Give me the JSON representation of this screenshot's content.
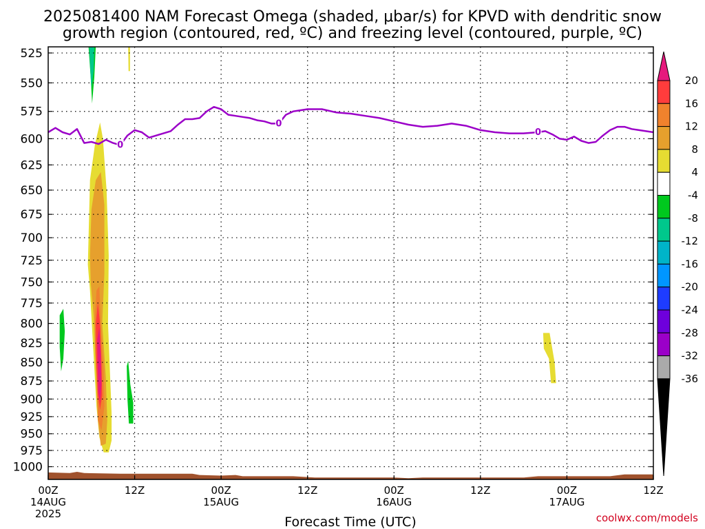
{
  "title": {
    "line1": "2025081400 NAM Forecast Omega (shaded, μbar/s) for KPVD with dendritic snow",
    "line2": "growth region (contoured, red, ºC) and freezing level (contoured, purple, ºC)"
  },
  "credit": "coolwx.com/models",
  "chart_data": {
    "type": "time-height cross section",
    "xlabel": "Forecast Time (UTC)",
    "ylabel": "",
    "x_range_hours": [
      0,
      84
    ],
    "y_range_hpa": [
      1020,
      520
    ],
    "y_scale": "log-pressure",
    "grid": true,
    "y_ticks": [
      525,
      550,
      575,
      600,
      625,
      650,
      675,
      700,
      725,
      750,
      775,
      800,
      825,
      850,
      875,
      900,
      925,
      950,
      975,
      1000
    ],
    "x_ticks": [
      {
        "hour": 0,
        "label": "00Z",
        "date": "14AUG",
        "year": "2025"
      },
      {
        "hour": 12,
        "label": "12Z",
        "date": "",
        "year": ""
      },
      {
        "hour": 24,
        "label": "00Z",
        "date": "15AUG",
        "year": ""
      },
      {
        "hour": 36,
        "label": "12Z",
        "date": "",
        "year": ""
      },
      {
        "hour": 48,
        "label": "00Z",
        "date": "16AUG",
        "year": ""
      },
      {
        "hour": 60,
        "label": "12Z",
        "date": "",
        "year": ""
      },
      {
        "hour": 72,
        "label": "00Z",
        "date": "17AUG",
        "year": ""
      },
      {
        "hour": 84,
        "label": "12Z",
        "date": "",
        "year": ""
      }
    ],
    "freezing_level": {
      "contour_label": "0",
      "color": "#9b00c8",
      "label_points": [
        {
          "hour": 10,
          "hpa": 606
        },
        {
          "hour": 32,
          "hpa": 586
        },
        {
          "hour": 68,
          "hpa": 594
        }
      ],
      "points": [
        {
          "hour": 0,
          "hpa": 594
        },
        {
          "hour": 1,
          "hpa": 590
        },
        {
          "hour": 2,
          "hpa": 594
        },
        {
          "hour": 3,
          "hpa": 596
        },
        {
          "hour": 4,
          "hpa": 591
        },
        {
          "hour": 5,
          "hpa": 604
        },
        {
          "hour": 6,
          "hpa": 603
        },
        {
          "hour": 7,
          "hpa": 605
        },
        {
          "hour": 8,
          "hpa": 601
        },
        {
          "hour": 9,
          "hpa": 604
        },
        {
          "hour": 10,
          "hpa": 606
        },
        {
          "hour": 11,
          "hpa": 597
        },
        {
          "hour": 12,
          "hpa": 592
        },
        {
          "hour": 13,
          "hpa": 594
        },
        {
          "hour": 14,
          "hpa": 599
        },
        {
          "hour": 15,
          "hpa": 597
        },
        {
          "hour": 16,
          "hpa": 595
        },
        {
          "hour": 17,
          "hpa": 593
        },
        {
          "hour": 18,
          "hpa": 587
        },
        {
          "hour": 19,
          "hpa": 582
        },
        {
          "hour": 20,
          "hpa": 582
        },
        {
          "hour": 21,
          "hpa": 581
        },
        {
          "hour": 22,
          "hpa": 575
        },
        {
          "hour": 23,
          "hpa": 571
        },
        {
          "hour": 24,
          "hpa": 573
        },
        {
          "hour": 25,
          "hpa": 578
        },
        {
          "hour": 26,
          "hpa": 579
        },
        {
          "hour": 27,
          "hpa": 580
        },
        {
          "hour": 28,
          "hpa": 581
        },
        {
          "hour": 29,
          "hpa": 583
        },
        {
          "hour": 30,
          "hpa": 584
        },
        {
          "hour": 31,
          "hpa": 586
        },
        {
          "hour": 32,
          "hpa": 586
        },
        {
          "hour": 33,
          "hpa": 578
        },
        {
          "hour": 34,
          "hpa": 575
        },
        {
          "hour": 35,
          "hpa": 574
        },
        {
          "hour": 36,
          "hpa": 573
        },
        {
          "hour": 38,
          "hpa": 573
        },
        {
          "hour": 40,
          "hpa": 576
        },
        {
          "hour": 42,
          "hpa": 577
        },
        {
          "hour": 44,
          "hpa": 579
        },
        {
          "hour": 46,
          "hpa": 581
        },
        {
          "hour": 48,
          "hpa": 584
        },
        {
          "hour": 50,
          "hpa": 587
        },
        {
          "hour": 52,
          "hpa": 589
        },
        {
          "hour": 54,
          "hpa": 588
        },
        {
          "hour": 56,
          "hpa": 586
        },
        {
          "hour": 58,
          "hpa": 588
        },
        {
          "hour": 60,
          "hpa": 592
        },
        {
          "hour": 62,
          "hpa": 594
        },
        {
          "hour": 64,
          "hpa": 595
        },
        {
          "hour": 66,
          "hpa": 595
        },
        {
          "hour": 68,
          "hpa": 594
        },
        {
          "hour": 69,
          "hpa": 593
        },
        {
          "hour": 70,
          "hpa": 596
        },
        {
          "hour": 71,
          "hpa": 600
        },
        {
          "hour": 72,
          "hpa": 601
        },
        {
          "hour": 73,
          "hpa": 598
        },
        {
          "hour": 74,
          "hpa": 602
        },
        {
          "hour": 75,
          "hpa": 604
        },
        {
          "hour": 76,
          "hpa": 603
        },
        {
          "hour": 77,
          "hpa": 597
        },
        {
          "hour": 78,
          "hpa": 592
        },
        {
          "hour": 79,
          "hpa": 589
        },
        {
          "hour": 80,
          "hpa": 589
        },
        {
          "hour": 81,
          "hpa": 591
        },
        {
          "hour": 82,
          "hpa": 592
        },
        {
          "hour": 84,
          "hpa": 594
        }
      ]
    },
    "omega_features": [
      {
        "name": "upward motion 14AUG 06Z",
        "color": "#e6dc32",
        "fill_order": 1,
        "points": [
          [
            5.6,
            700
          ],
          [
            5.8,
            640
          ],
          [
            6.5,
            605
          ],
          [
            7.2,
            585
          ],
          [
            7.6,
            600
          ],
          [
            8.1,
            650
          ],
          [
            8.4,
            720
          ],
          [
            8.3,
            800
          ],
          [
            8.6,
            870
          ],
          [
            8.8,
            920
          ],
          [
            8.8,
            960
          ],
          [
            8.4,
            978
          ],
          [
            7.7,
            978
          ],
          [
            7.1,
            955
          ],
          [
            6.7,
            910
          ],
          [
            6.3,
            840
          ],
          [
            5.8,
            760
          ],
          [
            5.5,
            730
          ]
        ]
      },
      {
        "name": "upward motion 14AUG 06Z",
        "color": "#e6a02d",
        "fill_order": 2,
        "points": [
          [
            5.8,
            720
          ],
          [
            6.0,
            670
          ],
          [
            6.6,
            640
          ],
          [
            7.3,
            632
          ],
          [
            7.8,
            665
          ],
          [
            7.8,
            740
          ],
          [
            7.5,
            800
          ],
          [
            8.0,
            870
          ],
          [
            8.2,
            930
          ],
          [
            8.0,
            965
          ],
          [
            7.3,
            968
          ],
          [
            6.9,
            930
          ],
          [
            6.6,
            860
          ],
          [
            6.3,
            790
          ],
          [
            5.9,
            750
          ]
        ]
      },
      {
        "name": "upward motion 14AUG 06Z",
        "color": "#f0822d",
        "fill_order": 3,
        "points": [
          [
            6.5,
            790
          ],
          [
            6.7,
            760
          ],
          [
            7.1,
            755
          ],
          [
            7.3,
            800
          ],
          [
            7.7,
            860
          ],
          [
            7.8,
            910
          ],
          [
            7.4,
            945
          ],
          [
            6.9,
            930
          ],
          [
            6.7,
            870
          ],
          [
            6.5,
            830
          ]
        ]
      },
      {
        "name": "upward motion 14AUG 06Z",
        "color": "#ff3c3c",
        "fill_order": 4,
        "points": [
          [
            6.6,
            800
          ],
          [
            6.9,
            775
          ],
          [
            7.2,
            800
          ],
          [
            7.4,
            850
          ],
          [
            7.5,
            895
          ],
          [
            7.2,
            915
          ],
          [
            6.9,
            895
          ],
          [
            6.7,
            850
          ]
        ]
      },
      {
        "name": "upward motion 14AUG 06Z",
        "color": "#e6197d",
        "fill_order": 5,
        "points": [
          [
            6.8,
            820
          ],
          [
            7.1,
            805
          ],
          [
            7.3,
            840
          ],
          [
            7.4,
            880
          ],
          [
            7.2,
            905
          ],
          [
            6.95,
            890
          ],
          [
            6.85,
            850
          ]
        ]
      },
      {
        "name": "downward motion 14AUG 06Z",
        "color": "#00c81e",
        "fill_order": 6,
        "points": [
          [
            5.6,
            520
          ],
          [
            6.6,
            520
          ],
          [
            6.4,
            545
          ],
          [
            6.1,
            568
          ],
          [
            5.9,
            545
          ]
        ]
      },
      {
        "name": "downward motion 14AUG 06Z",
        "color": "#00c88c",
        "fill_order": 7,
        "points": [
          [
            5.7,
            520
          ],
          [
            6.4,
            520
          ],
          [
            6.3,
            540
          ],
          [
            6.0,
            555
          ],
          [
            5.85,
            540
          ]
        ]
      },
      {
        "name": "downward motion 14AUG 02Z",
        "color": "#00c81e",
        "fill_order": 6,
        "points": [
          [
            1.6,
            790
          ],
          [
            2.1,
            782
          ],
          [
            2.3,
            810
          ],
          [
            2.1,
            845
          ],
          [
            1.8,
            862
          ],
          [
            1.6,
            830
          ]
        ]
      },
      {
        "name": "downward motion 14AUG 11Z",
        "color": "#00c81e",
        "fill_order": 6,
        "points": [
          [
            10.9,
            855
          ],
          [
            11.1,
            848
          ],
          [
            11.4,
            880
          ],
          [
            11.8,
            905
          ],
          [
            11.8,
            935
          ],
          [
            11.2,
            935
          ],
          [
            11.0,
            900
          ]
        ]
      },
      {
        "name": "upward motion 14AUG 11Z",
        "color": "#e6dc32",
        "fill_order": 1,
        "points": [
          [
            11.1,
            520
          ],
          [
            11.35,
            520
          ],
          [
            11.35,
            540
          ],
          [
            11.15,
            540
          ]
        ]
      },
      {
        "name": "upward motion 16AUG 21Z",
        "color": "#e6dc32",
        "fill_order": 1,
        "points": [
          [
            68.7,
            812
          ],
          [
            69.6,
            812
          ],
          [
            70.3,
            850
          ],
          [
            70.5,
            878
          ],
          [
            69.8,
            878
          ],
          [
            69.5,
            845
          ],
          [
            68.8,
            832
          ]
        ]
      }
    ],
    "terrain": {
      "color": "#a0522d",
      "top_points": [
        [
          0,
          1009
        ],
        [
          3,
          1010
        ],
        [
          4,
          1008
        ],
        [
          5,
          1010
        ],
        [
          10,
          1011
        ],
        [
          20,
          1011
        ],
        [
          21,
          1013
        ],
        [
          24,
          1014
        ],
        [
          26,
          1013
        ],
        [
          27,
          1015
        ],
        [
          34,
          1015
        ],
        [
          37,
          1017
        ],
        [
          45,
          1017
        ],
        [
          48,
          1017
        ],
        [
          50,
          1018
        ],
        [
          52,
          1017
        ],
        [
          66,
          1017
        ],
        [
          68,
          1015
        ],
        [
          78,
          1015
        ],
        [
          80,
          1012
        ],
        [
          84,
          1012
        ]
      ]
    },
    "colorbar": {
      "levels": [
        {
          "label": "20",
          "color": "#ff3c3c"
        },
        {
          "label": "16",
          "color": "#f0822d"
        },
        {
          "label": "12",
          "color": "#e6a02d"
        },
        {
          "label": "8",
          "color": "#e6dc32"
        },
        {
          "label": "4",
          "color": "#ffffff"
        },
        {
          "label": "-4",
          "color": "#00c81e"
        },
        {
          "label": "-8",
          "color": "#00c88c"
        },
        {
          "label": "-12",
          "color": "#00b4c8"
        },
        {
          "label": "-16",
          "color": "#0096ff"
        },
        {
          "label": "-20",
          "color": "#1e3cff"
        },
        {
          "label": "-24",
          "color": "#6e00dc"
        },
        {
          "label": "-28",
          "color": "#9b00c8"
        },
        {
          "label": "-32",
          "color": "#aaaaaa"
        },
        {
          "label": "-36",
          "color": ""
        }
      ],
      "top_color": "#e6197d",
      "bottom_color": "#000000"
    }
  }
}
